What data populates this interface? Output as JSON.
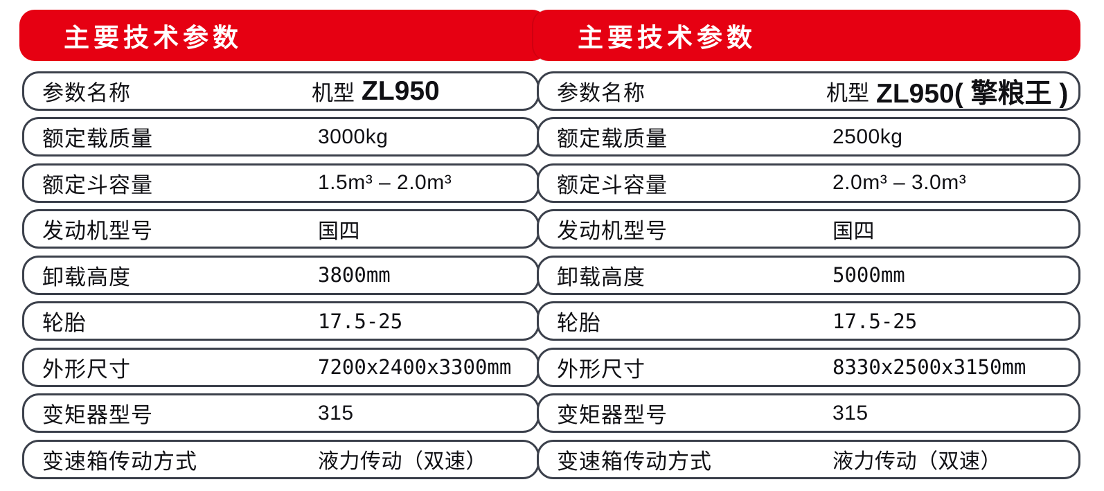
{
  "accent_color": "#e60012",
  "border_color": "#3b404b",
  "tables": [
    {
      "banner_title": "主要技术参数",
      "header": {
        "label": "参数名称",
        "model_prefix": "机型",
        "model": "ZL950"
      },
      "rows": [
        {
          "label": "额定载质量",
          "value": "3000kg"
        },
        {
          "label": "额定斗容量",
          "value": "1.5m³ – 2.0m³"
        },
        {
          "label": "发动机型号",
          "value": "国四"
        },
        {
          "label": "卸载高度",
          "value": "3800mm"
        },
        {
          "label": "轮胎",
          "value": "17.5-25"
        },
        {
          "label": "外形尺寸",
          "value": "7200x2400x3300mm"
        },
        {
          "label": "变矩器型号",
          "value": "315"
        },
        {
          "label": "变速箱传动方式",
          "value": "液力传动（双速）"
        }
      ]
    },
    {
      "banner_title": "主要技术参数",
      "header": {
        "label": "参数名称",
        "model_prefix": "机型",
        "model": "ZL950( 擎粮王 )"
      },
      "rows": [
        {
          "label": "额定载质量",
          "value": "2500kg"
        },
        {
          "label": "额定斗容量",
          "value": "2.0m³ – 3.0m³"
        },
        {
          "label": "发动机型号",
          "value": "国四"
        },
        {
          "label": "卸载高度",
          "value": "5000mm"
        },
        {
          "label": "轮胎",
          "value": "17.5-25"
        },
        {
          "label": "外形尺寸",
          "value": "8330x2500x3150mm"
        },
        {
          "label": "变矩器型号",
          "value": "315"
        },
        {
          "label": "变速箱传动方式",
          "value": "液力传动（双速）"
        }
      ]
    }
  ]
}
